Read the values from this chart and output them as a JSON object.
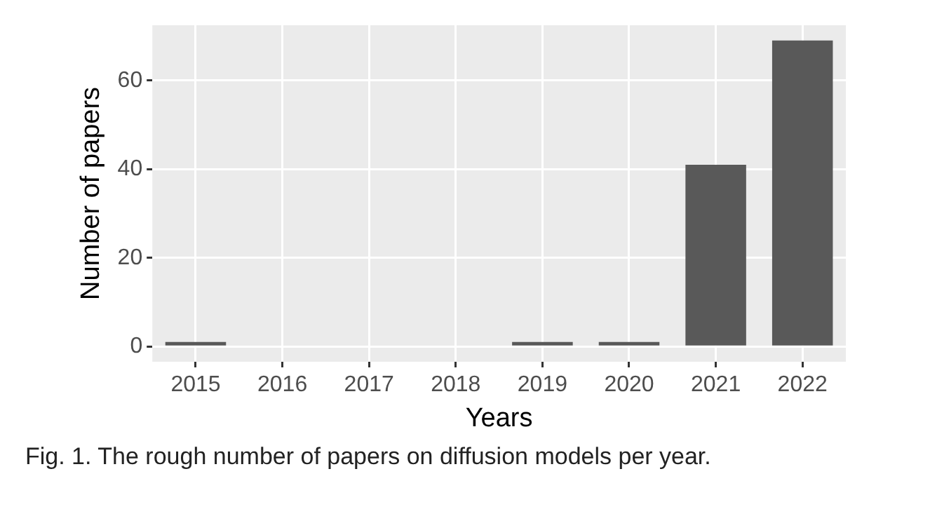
{
  "chart_data": {
    "type": "bar",
    "xlabel": "Years",
    "ylabel": "Number of papers",
    "categories": [
      "2015",
      "2016",
      "2017",
      "2018",
      "2019",
      "2020",
      "2021",
      "2022"
    ],
    "values": [
      1,
      0,
      0,
      0,
      1,
      1,
      41,
      69
    ],
    "color": "#595959",
    "ylim": [
      -3.45,
      72.45
    ],
    "yticks": [
      0,
      20,
      40,
      60
    ],
    "grid": true,
    "legend": false,
    "annotations": [
      "Fig. 1. The rough number of papers on diffusion models per year."
    ]
  }
}
